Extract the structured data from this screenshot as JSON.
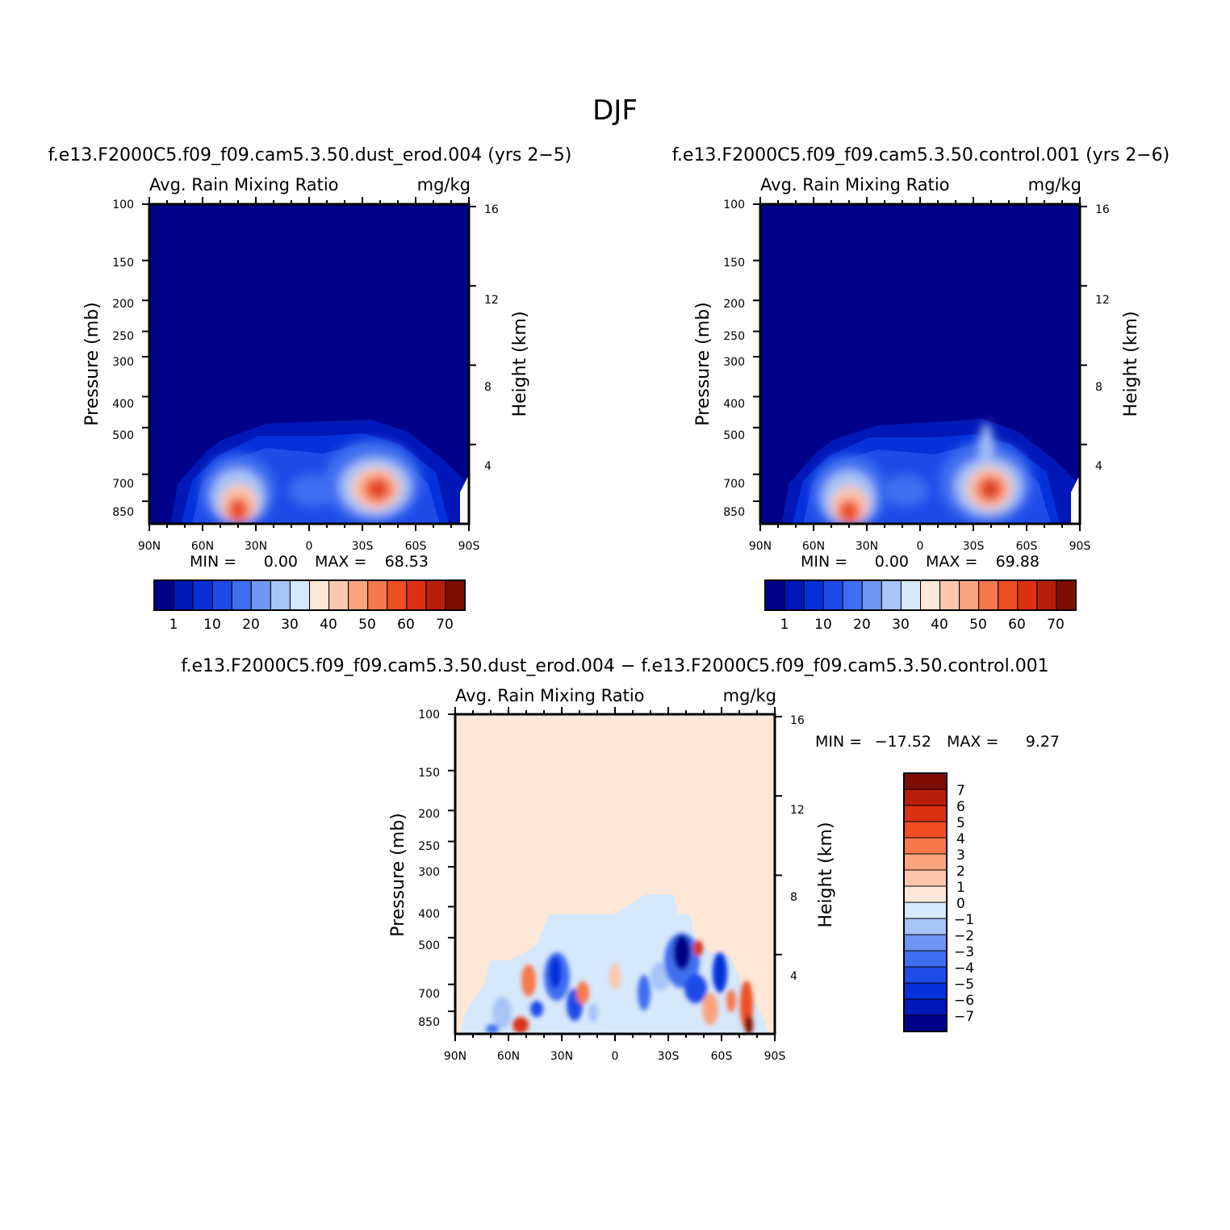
{
  "figure_title": "DJF",
  "colors": {
    "abs_levels": [
      "#00038a",
      "#0018b8",
      "#0631da",
      "#1f4be8",
      "#3f6ef0",
      "#6f96f2",
      "#a7c4f7",
      "#d6e8fb",
      "#fde8d8",
      "#fdc7ae",
      "#fba47f",
      "#f7784b",
      "#ee4e22",
      "#dc3112",
      "#b81e0c",
      "#7e0d05"
    ],
    "diff_levels": [
      "#00038a",
      "#0018b8",
      "#0631da",
      "#1f4be8",
      "#3f6ef0",
      "#6f96f2",
      "#a7c4f7",
      "#d6e8fb",
      "#fde8d8",
      "#fdc7ae",
      "#fba47f",
      "#f7784b",
      "#ee4e22",
      "#dc3112",
      "#b81e0c",
      "#7e0d05"
    ]
  },
  "panels": [
    {
      "case_title": "f.e13.F2000C5.f09_f09.cam5.3.50.dust_erod.004 (yrs 2−5)",
      "header_left": "Avg. Rain Mixing Ratio",
      "header_right": "mg/kg",
      "y_left_label": "Pressure (mb)",
      "y_right_label": "Height (km)",
      "x_ticks": [
        "90N",
        "60N",
        "30N",
        "0",
        "30S",
        "60S",
        "90S"
      ],
      "p_ticks": [
        "100",
        "150",
        "200",
        "250",
        "300",
        "400",
        "500",
        "700",
        "850"
      ],
      "z_ticks": [
        "16",
        "12",
        "8",
        "4"
      ],
      "min_label": "MIN =",
      "min_value": "0.00",
      "max_label": "MAX =",
      "max_value": "68.53",
      "colorbar_labels": [
        "1",
        "10",
        "20",
        "30",
        "40",
        "50",
        "60",
        "70"
      ]
    },
    {
      "case_title": "f.e13.F2000C5.f09_f09.cam5.3.50.control.001 (yrs 2−6)",
      "header_left": "Avg. Rain Mixing Ratio",
      "header_right": "mg/kg",
      "y_left_label": "Pressure (mb)",
      "y_right_label": "Height (km)",
      "x_ticks": [
        "90N",
        "60N",
        "30N",
        "0",
        "30S",
        "60S",
        "90S"
      ],
      "p_ticks": [
        "100",
        "150",
        "200",
        "250",
        "300",
        "400",
        "500",
        "700",
        "850"
      ],
      "z_ticks": [
        "16",
        "12",
        "8",
        "4"
      ],
      "min_label": "MIN =",
      "min_value": "0.00",
      "max_label": "MAX =",
      "max_value": "69.88",
      "colorbar_labels": [
        "1",
        "10",
        "20",
        "30",
        "40",
        "50",
        "60",
        "70"
      ]
    },
    {
      "case_title": "f.e13.F2000C5.f09_f09.cam5.3.50.dust_erod.004 − f.e13.F2000C5.f09_f09.cam5.3.50.control.001",
      "header_left": "Avg. Rain Mixing Ratio",
      "header_right": "mg/kg",
      "y_left_label": "Pressure (mb)",
      "y_right_label": "Height (km)",
      "x_ticks": [
        "90N",
        "60N",
        "30N",
        "0",
        "30S",
        "60S",
        "90S"
      ],
      "p_ticks": [
        "100",
        "150",
        "200",
        "250",
        "300",
        "400",
        "500",
        "700",
        "850"
      ],
      "z_ticks": [
        "16",
        "12",
        "8",
        "4"
      ],
      "min_label": "MIN =",
      "min_value": "−17.52",
      "max_label": "MAX =",
      "max_value": "9.27",
      "colorbar_labels": [
        "7",
        "6",
        "5",
        "4",
        "3",
        "2",
        "1",
        "0",
        "−1",
        "−2",
        "−3",
        "−4",
        "−5",
        "−6",
        "−7"
      ]
    }
  ],
  "chart_data": [
    {
      "type": "heatmap",
      "title": "f.e13.F2000C5.f09_f09.cam5.3.50.dust_erod.004 (yrs 2−5)",
      "variable": "Avg. Rain Mixing Ratio",
      "units": "mg/kg",
      "x_axis": "latitude",
      "xlim": [
        "90N",
        "90S"
      ],
      "y_axis": "Pressure (mb)",
      "ylim": [
        100,
        1000
      ],
      "y_scale": "log",
      "y2_axis": "Height (km)",
      "contour_levels": [
        1,
        5,
        10,
        15,
        20,
        25,
        30,
        35,
        40,
        45,
        50,
        55,
        60,
        65,
        70
      ],
      "min": 0.0,
      "max": 68.53,
      "features": [
        {
          "lat": -40,
          "pressure": 720,
          "value": 68
        },
        {
          "lat": 37,
          "pressure": 870,
          "value": 62
        },
        {
          "lat": 0,
          "pressure": 720,
          "value": 22
        }
      ]
    },
    {
      "type": "heatmap",
      "title": "f.e13.F2000C5.f09_f09.cam5.3.50.control.001 (yrs 2−6)",
      "variable": "Avg. Rain Mixing Ratio",
      "units": "mg/kg",
      "x_axis": "latitude",
      "xlim": [
        "90N",
        "90S"
      ],
      "y_axis": "Pressure (mb)",
      "ylim": [
        100,
        1000
      ],
      "y_scale": "log",
      "y2_axis": "Height (km)",
      "contour_levels": [
        1,
        5,
        10,
        15,
        20,
        25,
        30,
        35,
        40,
        45,
        50,
        55,
        60,
        65,
        70
      ],
      "min": 0.0,
      "max": 69.88,
      "features": [
        {
          "lat": -40,
          "pressure": 720,
          "value": 69
        },
        {
          "lat": 37,
          "pressure": 850,
          "value": 60
        },
        {
          "lat": 0,
          "pressure": 720,
          "value": 20
        }
      ]
    },
    {
      "type": "heatmap",
      "title": "f.e13.F2000C5.f09_f09.cam5.3.50.dust_erod.004 − f.e13.F2000C5.f09_f09.cam5.3.50.control.001",
      "variable": "Avg. Rain Mixing Ratio",
      "units": "mg/kg",
      "x_axis": "latitude",
      "xlim": [
        "90N",
        "90S"
      ],
      "y_axis": "Pressure (mb)",
      "ylim": [
        100,
        1000
      ],
      "y_scale": "log",
      "y2_axis": "Height (km)",
      "contour_levels": [
        -7,
        -6,
        -5,
        -4,
        -3,
        -2,
        -1,
        0,
        1,
        2,
        3,
        4,
        5,
        6,
        7
      ],
      "min": -17.52,
      "max": 9.27,
      "features": [
        {
          "lat": -38,
          "pressure": 520,
          "value": -17.5
        },
        {
          "lat": -55,
          "pressure": 640,
          "value": -8
        },
        {
          "lat": 30,
          "pressure": 650,
          "value": -7
        },
        {
          "lat": 47,
          "pressure": 680,
          "value": 5
        },
        {
          "lat": -73,
          "pressure": 820,
          "value": 9.3
        },
        {
          "lat": 38,
          "pressure": 900,
          "value": 6
        }
      ]
    }
  ]
}
